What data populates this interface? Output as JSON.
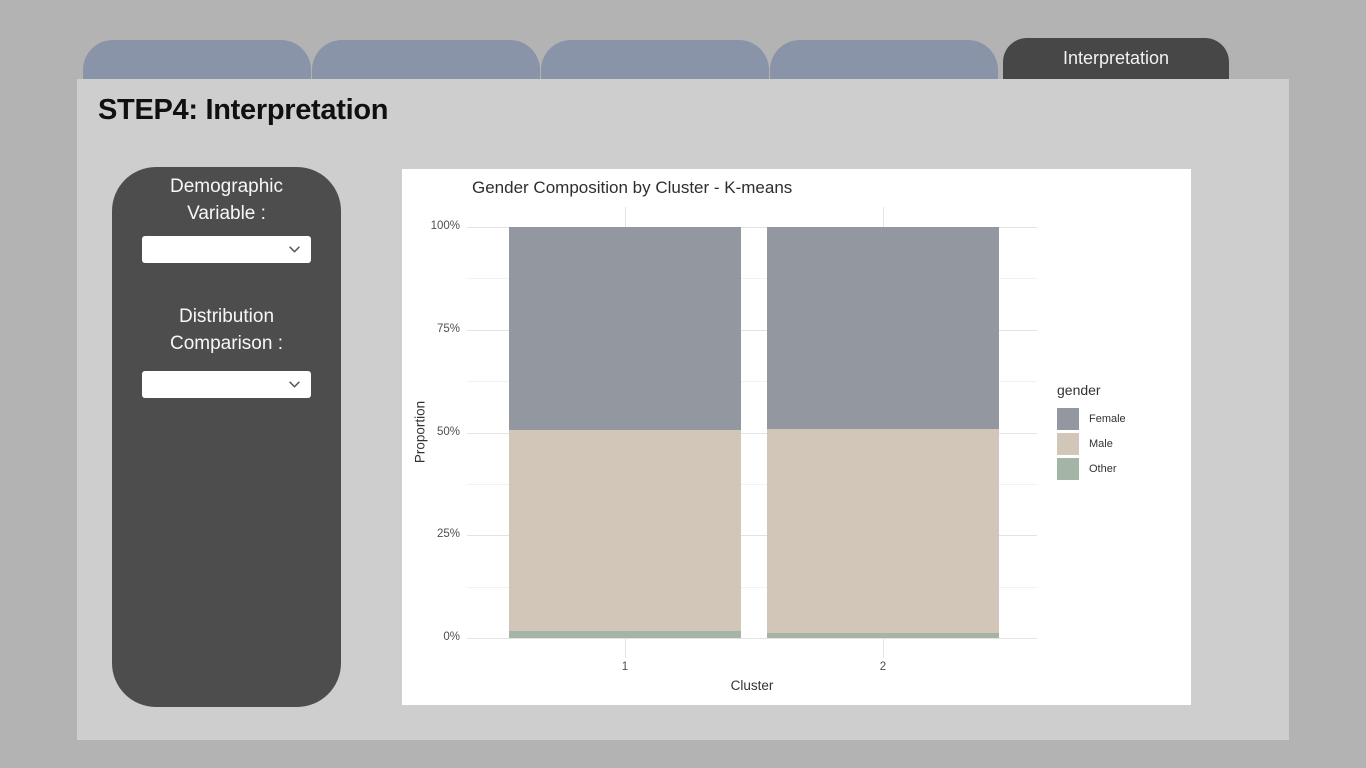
{
  "page": {
    "title": "STEP4: Interpretation"
  },
  "tabs": {
    "active_label": "Interpretation"
  },
  "sidebar": {
    "demographic_label": "Demographic Variable :",
    "demographic_value": "",
    "comparison_label": "Distribution Comparison :",
    "comparison_value": ""
  },
  "colors": {
    "background": "#b3b3b3",
    "content_panel": "#cecece",
    "inactive_tab": "#8a94a9",
    "active_tab": "#474747",
    "sidebar_panel": "#4d4d4d",
    "chart_background": "#ffffff"
  },
  "chart_data": {
    "type": "bar",
    "stacked": true,
    "percent": true,
    "title": "Gender Composition by Cluster - K-means",
    "xlabel": "Cluster",
    "ylabel": "Proportion",
    "categories": [
      "1",
      "2"
    ],
    "series": [
      {
        "name": "Female",
        "color": "#9297a0",
        "values": [
          49.4,
          49.1
        ]
      },
      {
        "name": "Male",
        "color": "#d2c6b8",
        "values": [
          48.9,
          49.7
        ]
      },
      {
        "name": "Other",
        "color": "#a4b5a6",
        "values": [
          1.7,
          1.2
        ]
      }
    ],
    "ylim": [
      0,
      100
    ],
    "y_ticks": [
      {
        "label": "0%",
        "value": 0
      },
      {
        "label": "25%",
        "value": 25
      },
      {
        "label": "50%",
        "value": 50
      },
      {
        "label": "75%",
        "value": 75
      },
      {
        "label": "100%",
        "value": 100
      }
    ],
    "y_minor": [
      12.5,
      37.5,
      62.5,
      87.5
    ],
    "legend_title": "gender",
    "legend_position": "right",
    "grid": true
  }
}
